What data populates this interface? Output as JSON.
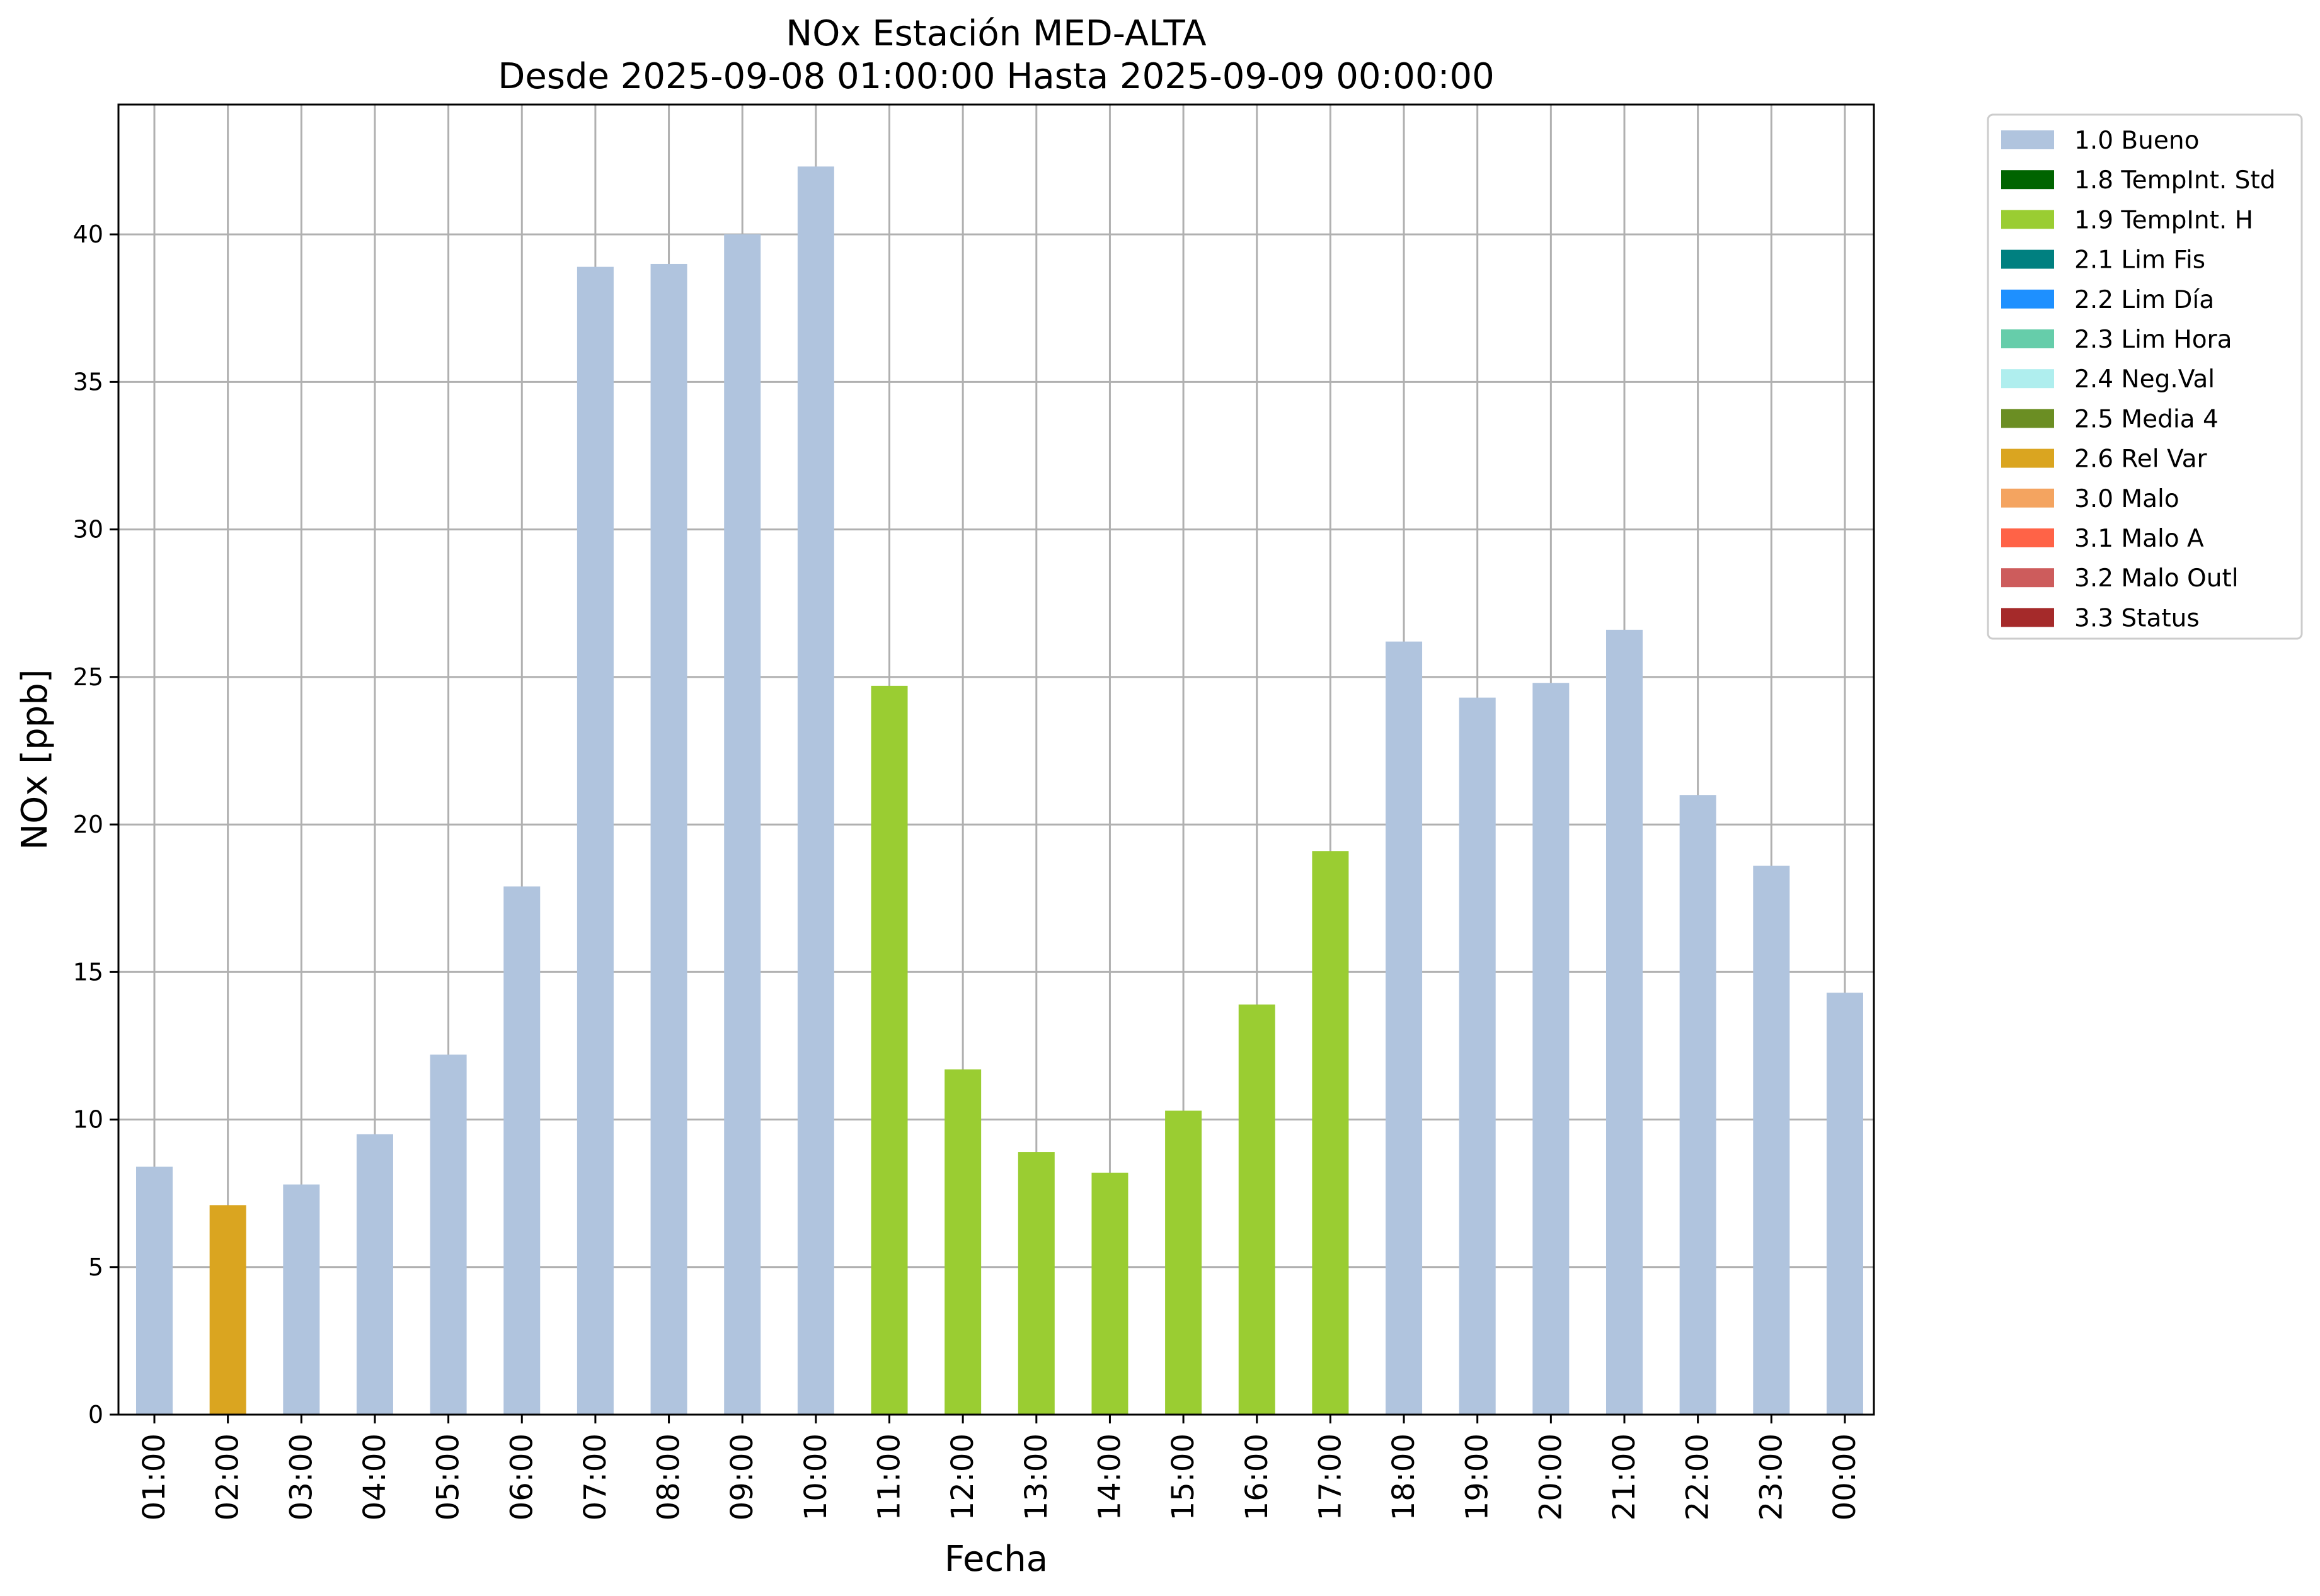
{
  "chart_data": {
    "type": "bar",
    "title": "NOx Estación MED-ALTA",
    "subtitle": "Desde 2025-09-08 01:00:00 Hasta 2025-09-09 00:00:00",
    "xlabel": "Fecha",
    "ylabel": "NOx [ppb]",
    "ylim": [
      0,
      44.4
    ],
    "yticks": [
      "0",
      "5",
      "10",
      "15",
      "20",
      "25",
      "30",
      "35",
      "40"
    ],
    "grid": true,
    "legend_position": "outside-top-right",
    "categories": [
      "01:00",
      "02:00",
      "03:00",
      "04:00",
      "05:00",
      "06:00",
      "07:00",
      "08:00",
      "09:00",
      "10:00",
      "11:00",
      "12:00",
      "13:00",
      "14:00",
      "15:00",
      "16:00",
      "17:00",
      "18:00",
      "19:00",
      "20:00",
      "21:00",
      "22:00",
      "23:00",
      "00:00"
    ],
    "values": [
      8.4,
      7.1,
      7.8,
      9.5,
      12.2,
      17.9,
      38.9,
      39.0,
      40.0,
      42.3,
      24.7,
      11.7,
      8.9,
      8.2,
      10.3,
      13.9,
      19.1,
      26.2,
      24.3,
      24.8,
      26.6,
      21.0,
      18.6,
      14.3
    ],
    "flags": [
      "1.0 Bueno",
      "2.6 Rel Var",
      "1.0 Bueno",
      "1.0 Bueno",
      "1.0 Bueno",
      "1.0 Bueno",
      "1.0 Bueno",
      "1.0 Bueno",
      "1.0 Bueno",
      "1.0 Bueno",
      "1.9 TempInt. H",
      "1.9 TempInt. H",
      "1.9 TempInt. H",
      "1.9 TempInt. H",
      "1.9 TempInt. H",
      "1.9 TempInt. H",
      "1.9 TempInt. H",
      "1.0 Bueno",
      "1.0 Bueno",
      "1.0 Bueno",
      "1.0 Bueno",
      "1.0 Bueno",
      "1.0 Bueno",
      "1.0 Bueno"
    ],
    "legend": [
      {
        "label": "1.0 Bueno",
        "color": "#b0c4de"
      },
      {
        "label": "1.8 TempInt. Std",
        "color": "#006400"
      },
      {
        "label": "1.9 TempInt. H",
        "color": "#9acd32"
      },
      {
        "label": "2.1 Lim Fis",
        "color": "#008080"
      },
      {
        "label": "2.2 Lim Día",
        "color": "#1e90ff"
      },
      {
        "label": "2.3 Lim Hora",
        "color": "#66cdaa"
      },
      {
        "label": "2.4 Neg.Val",
        "color": "#afeeee"
      },
      {
        "label": "2.5 Media 4",
        "color": "#6b8e23"
      },
      {
        "label": "2.6 Rel Var",
        "color": "#daa520"
      },
      {
        "label": "3.0 Malo",
        "color": "#f4a460"
      },
      {
        "label": "3.1 Malo A",
        "color": "#ff6347"
      },
      {
        "label": "3.2 Malo Outl",
        "color": "#cd5c5c"
      },
      {
        "label": "3.3 Status",
        "color": "#a52a2a"
      }
    ]
  }
}
